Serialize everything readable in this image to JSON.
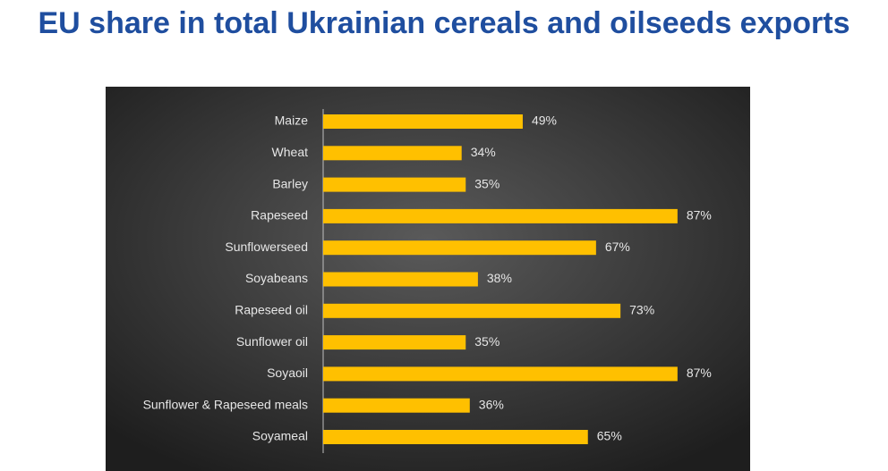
{
  "chart_data": {
    "type": "bar",
    "orientation": "horizontal",
    "title": "EU share in total Ukrainian cereals and oilseeds exports",
    "categories": [
      "Maize",
      "Wheat",
      "Barley",
      "Rapeseed",
      "Sunflowerseed",
      "Soyabeans",
      "Rapeseed oil",
      "Sunflower oil",
      "Soyaoil",
      "Sunflower & Rapeseed meals",
      "Soyameal"
    ],
    "values": [
      49,
      34,
      35,
      87,
      67,
      38,
      73,
      35,
      87,
      36,
      65
    ],
    "value_labels": [
      "49%",
      "34%",
      "35%",
      "87%",
      "67%",
      "38%",
      "73%",
      "35%",
      "87%",
      "36%",
      "65%"
    ],
    "color": "#ffc000"
  }
}
